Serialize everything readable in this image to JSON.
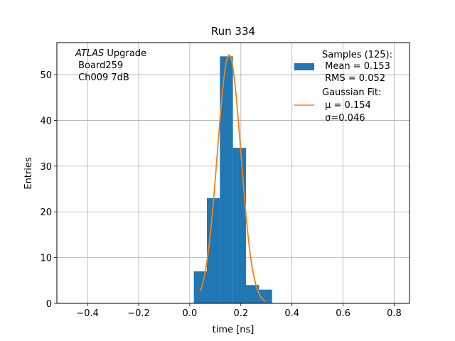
{
  "chart_data": {
    "type": "bar",
    "title": "Run 334",
    "xlabel": "time [ns]",
    "ylabel": "Entries",
    "xlim": [
      -0.52,
      0.86
    ],
    "ylim": [
      0,
      57
    ],
    "grid": true,
    "xticks": [
      -0.4,
      -0.2,
      0.0,
      0.2,
      0.4,
      0.6,
      0.8
    ],
    "xtick_labels": [
      "−0.4",
      "−0.2",
      "0.0",
      "0.2",
      "0.4",
      "0.6",
      "0.8"
    ],
    "yticks": [
      0,
      10,
      20,
      30,
      40,
      50
    ],
    "ytick_labels": [
      "0",
      "10",
      "20",
      "30",
      "40",
      "50"
    ],
    "histogram": {
      "name": "Samples",
      "color": "#1f77b4",
      "bin_edges": [
        0.016,
        0.067,
        0.118,
        0.169,
        0.22,
        0.271,
        0.322
      ],
      "bins": [
        {
          "x0": 0.016,
          "x1": 0.067,
          "count": 7
        },
        {
          "x0": 0.067,
          "x1": 0.118,
          "count": 23
        },
        {
          "x0": 0.118,
          "x1": 0.169,
          "count": 54
        },
        {
          "x0": 0.169,
          "x1": 0.22,
          "count": 34
        },
        {
          "x0": 0.22,
          "x1": 0.271,
          "count": 4
        },
        {
          "x0": 0.271,
          "x1": 0.322,
          "count": 3
        }
      ]
    },
    "fit": {
      "name": "Gaussian Fit",
      "color": "#ff7f0e",
      "mu": 0.154,
      "sigma": 0.046,
      "amplitude": 54.3,
      "x_range": [
        0.041,
        0.297
      ]
    },
    "annotation": {
      "line1_italic": "ATLAS",
      "line1_rest": " Upgrade",
      "line2": " Board259",
      "line3": " Ch009 7dB"
    },
    "legend": {
      "position": "top-right",
      "entries": [
        {
          "lines": [
            "Samples (125):",
            " Mean = 0.153",
            " RMS = 0.052"
          ]
        },
        {
          "lines": [
            "Gaussian Fit:",
            " μ = 0.154",
            " σ=0.046"
          ]
        }
      ]
    }
  }
}
